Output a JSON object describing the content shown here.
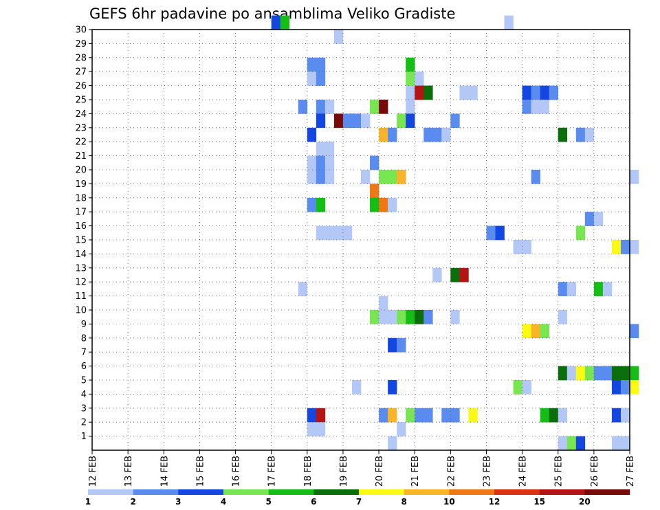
{
  "chart_data": {
    "type": "heatmap",
    "title": "GEFS 6hr padavine po ansamblima Veliko Gradiste",
    "xlabel": "",
    "ylabel": "",
    "x_tick_labels": [
      "12 FEB",
      "13 FEB",
      "14 FEB",
      "15 FEB",
      "16 FEB",
      "17 FEB",
      "18 FEB",
      "19 FEB",
      "20 FEB",
      "21 FEB",
      "22 FEB",
      "23 FEB",
      "24 FEB",
      "25 FEB",
      "26 FEB",
      "27 FEB"
    ],
    "y_tick_labels": [
      "1",
      "2",
      "3",
      "4",
      "5",
      "6",
      "7",
      "8",
      "9",
      "10",
      "11",
      "12",
      "13",
      "14",
      "15",
      "16",
      "17",
      "18",
      "19",
      "20",
      "21",
      "22",
      "23",
      "24",
      "25",
      "26",
      "27",
      "28",
      "29",
      "30"
    ],
    "ylim": [
      0,
      30
    ],
    "grid": true,
    "colorbar": {
      "labels": [
        "1",
        "2",
        "3",
        "4",
        "5",
        "6",
        "7",
        "8",
        "10",
        "12",
        "15",
        "20"
      ],
      "colors": [
        "#b4c8f8",
        "#5a8cf0",
        "#1446e0",
        "#78e650",
        "#14be14",
        "#0a6e0a",
        "#fafa14",
        "#fab428",
        "#f07814",
        "#dc3214",
        "#b41414",
        "#780a0a"
      ]
    },
    "cells": [
      {
        "m": 30,
        "d": "17 FEB",
        "s": 0,
        "v": 3
      },
      {
        "m": 30,
        "d": "17 FEB",
        "s": 1,
        "v": 5
      },
      {
        "m": 30,
        "d": "23 FEB",
        "s": 2,
        "v": 1
      },
      {
        "m": 29,
        "d": "18 FEB",
        "s": 3,
        "v": 1
      },
      {
        "m": 27,
        "d": "18 FEB",
        "s": 0,
        "v": 2
      },
      {
        "m": 27,
        "d": "18 FEB",
        "s": 1,
        "v": 2
      },
      {
        "m": 27,
        "d": "20 FEB",
        "s": 3,
        "v": 5
      },
      {
        "m": 26,
        "d": "18 FEB",
        "s": 0,
        "v": 1
      },
      {
        "m": 26,
        "d": "18 FEB",
        "s": 1,
        "v": 2
      },
      {
        "m": 26,
        "d": "20 FEB",
        "s": 3,
        "v": 4
      },
      {
        "m": 26,
        "d": "21 FEB",
        "s": 0,
        "v": 1
      },
      {
        "m": 25,
        "d": "20 FEB",
        "s": 3,
        "v": 1
      },
      {
        "m": 25,
        "d": "21 FEB",
        "s": 0,
        "v": 15
      },
      {
        "m": 25,
        "d": "21 FEB",
        "s": 1,
        "v": 6
      },
      {
        "m": 25,
        "d": "22 FEB",
        "s": 1,
        "v": 1
      },
      {
        "m": 25,
        "d": "22 FEB",
        "s": 2,
        "v": 1
      },
      {
        "m": 25,
        "d": "24 FEB",
        "s": 0,
        "v": 3
      },
      {
        "m": 25,
        "d": "24 FEB",
        "s": 1,
        "v": 2
      },
      {
        "m": 25,
        "d": "24 FEB",
        "s": 2,
        "v": 3
      },
      {
        "m": 25,
        "d": "24 FEB",
        "s": 3,
        "v": 2
      },
      {
        "m": 24,
        "d": "17 FEB",
        "s": 3,
        "v": 2
      },
      {
        "m": 24,
        "d": "18 FEB",
        "s": 1,
        "v": 2
      },
      {
        "m": 24,
        "d": "18 FEB",
        "s": 2,
        "v": 1
      },
      {
        "m": 24,
        "d": "19 FEB",
        "s": 3,
        "v": 4
      },
      {
        "m": 24,
        "d": "20 FEB",
        "s": 0,
        "v": 20
      },
      {
        "m": 24,
        "d": "20 FEB",
        "s": 3,
        "v": 1
      },
      {
        "m": 24,
        "d": "24 FEB",
        "s": 0,
        "v": 2
      },
      {
        "m": 24,
        "d": "24 FEB",
        "s": 1,
        "v": 1
      },
      {
        "m": 24,
        "d": "24 FEB",
        "s": 2,
        "v": 1
      },
      {
        "m": 23,
        "d": "18 FEB",
        "s": 1,
        "v": 3
      },
      {
        "m": 23,
        "d": "18 FEB",
        "s": 3,
        "v": 20
      },
      {
        "m": 23,
        "d": "19 FEB",
        "s": 0,
        "v": 2
      },
      {
        "m": 23,
        "d": "19 FEB",
        "s": 1,
        "v": 2
      },
      {
        "m": 23,
        "d": "19 FEB",
        "s": 2,
        "v": 1
      },
      {
        "m": 23,
        "d": "20 FEB",
        "s": 2,
        "v": 4
      },
      {
        "m": 23,
        "d": "20 FEB",
        "s": 3,
        "v": 3
      },
      {
        "m": 23,
        "d": "22 FEB",
        "s": 0,
        "v": 2
      },
      {
        "m": 22,
        "d": "18 FEB",
        "s": 0,
        "v": 3
      },
      {
        "m": 22,
        "d": "20 FEB",
        "s": 0,
        "v": 8
      },
      {
        "m": 22,
        "d": "20 FEB",
        "s": 1,
        "v": 2
      },
      {
        "m": 22,
        "d": "21 FEB",
        "s": 1,
        "v": 2
      },
      {
        "m": 22,
        "d": "21 FEB",
        "s": 2,
        "v": 2
      },
      {
        "m": 22,
        "d": "21 FEB",
        "s": 3,
        "v": 1
      },
      {
        "m": 22,
        "d": "25 FEB",
        "s": 0,
        "v": 6
      },
      {
        "m": 22,
        "d": "25 FEB",
        "s": 2,
        "v": 2
      },
      {
        "m": 22,
        "d": "25 FEB",
        "s": 3,
        "v": 1
      },
      {
        "m": 21,
        "d": "18 FEB",
        "s": 1,
        "v": 1
      },
      {
        "m": 21,
        "d": "18 FEB",
        "s": 2,
        "v": 1
      },
      {
        "m": 20,
        "d": "18 FEB",
        "s": 0,
        "v": 1
      },
      {
        "m": 20,
        "d": "18 FEB",
        "s": 1,
        "v": 2
      },
      {
        "m": 20,
        "d": "18 FEB",
        "s": 2,
        "v": 1
      },
      {
        "m": 20,
        "d": "19 FEB",
        "s": 3,
        "v": 2
      },
      {
        "m": 19,
        "d": "18 FEB",
        "s": 0,
        "v": 1
      },
      {
        "m": 19,
        "d": "18 FEB",
        "s": 1,
        "v": 2
      },
      {
        "m": 19,
        "d": "18 FEB",
        "s": 2,
        "v": 1
      },
      {
        "m": 19,
        "d": "19 FEB",
        "s": 2,
        "v": 1
      },
      {
        "m": 19,
        "d": "20 FEB",
        "s": 0,
        "v": 4
      },
      {
        "m": 19,
        "d": "20 FEB",
        "s": 1,
        "v": 4
      },
      {
        "m": 19,
        "d": "20 FEB",
        "s": 2,
        "v": 8
      },
      {
        "m": 19,
        "d": "24 FEB",
        "s": 1,
        "v": 2
      },
      {
        "m": 19,
        "d": "27 FEB",
        "s": 0,
        "v": 1
      },
      {
        "m": 18,
        "d": "19 FEB",
        "s": 3,
        "v": 10
      },
      {
        "m": 17,
        "d": "18 FEB",
        "s": 0,
        "v": 2
      },
      {
        "m": 17,
        "d": "18 FEB",
        "s": 1,
        "v": 5
      },
      {
        "m": 17,
        "d": "19 FEB",
        "s": 3,
        "v": 5
      },
      {
        "m": 17,
        "d": "20 FEB",
        "s": 0,
        "v": 10
      },
      {
        "m": 17,
        "d": "20 FEB",
        "s": 1,
        "v": 1
      },
      {
        "m": 16,
        "d": "25 FEB",
        "s": 3,
        "v": 2
      },
      {
        "m": 16,
        "d": "26 FEB",
        "s": 0,
        "v": 1
      },
      {
        "m": 15,
        "d": "18 FEB",
        "s": 1,
        "v": 1
      },
      {
        "m": 15,
        "d": "18 FEB",
        "s": 2,
        "v": 1
      },
      {
        "m": 15,
        "d": "18 FEB",
        "s": 3,
        "v": 1
      },
      {
        "m": 15,
        "d": "19 FEB",
        "s": 0,
        "v": 1
      },
      {
        "m": 15,
        "d": "23 FEB",
        "s": 0,
        "v": 2
      },
      {
        "m": 15,
        "d": "23 FEB",
        "s": 1,
        "v": 3
      },
      {
        "m": 15,
        "d": "25 FEB",
        "s": 2,
        "v": 4
      },
      {
        "m": 14,
        "d": "23 FEB",
        "s": 3,
        "v": 1
      },
      {
        "m": 14,
        "d": "24 FEB",
        "s": 0,
        "v": 1
      },
      {
        "m": 14,
        "d": "26 FEB",
        "s": 2,
        "v": 7
      },
      {
        "m": 14,
        "d": "26 FEB",
        "s": 3,
        "v": 2
      },
      {
        "m": 14,
        "d": "27 FEB",
        "s": 0,
        "v": 1
      },
      {
        "m": 12,
        "d": "21 FEB",
        "s": 2,
        "v": 1
      },
      {
        "m": 12,
        "d": "22 FEB",
        "s": 0,
        "v": 6
      },
      {
        "m": 12,
        "d": "22 FEB",
        "s": 1,
        "v": 15
      },
      {
        "m": 11,
        "d": "17 FEB",
        "s": 3,
        "v": 1
      },
      {
        "m": 11,
        "d": "25 FEB",
        "s": 0,
        "v": 2
      },
      {
        "m": 11,
        "d": "25 FEB",
        "s": 1,
        "v": 1
      },
      {
        "m": 11,
        "d": "26 FEB",
        "s": 0,
        "v": 5
      },
      {
        "m": 11,
        "d": "26 FEB",
        "s": 1,
        "v": 1
      },
      {
        "m": 10,
        "d": "20 FEB",
        "s": 0,
        "v": 1
      },
      {
        "m": 9,
        "d": "19 FEB",
        "s": 3,
        "v": 4
      },
      {
        "m": 9,
        "d": "20 FEB",
        "s": 0,
        "v": 1
      },
      {
        "m": 9,
        "d": "20 FEB",
        "s": 1,
        "v": 1
      },
      {
        "m": 9,
        "d": "20 FEB",
        "s": 2,
        "v": 4
      },
      {
        "m": 9,
        "d": "20 FEB",
        "s": 3,
        "v": 5
      },
      {
        "m": 9,
        "d": "21 FEB",
        "s": 0,
        "v": 6
      },
      {
        "m": 9,
        "d": "21 FEB",
        "s": 1,
        "v": 2
      },
      {
        "m": 9,
        "d": "22 FEB",
        "s": 0,
        "v": 1
      },
      {
        "m": 9,
        "d": "25 FEB",
        "s": 0,
        "v": 1
      },
      {
        "m": 8,
        "d": "24 FEB",
        "s": 0,
        "v": 7
      },
      {
        "m": 8,
        "d": "24 FEB",
        "s": 1,
        "v": 8
      },
      {
        "m": 8,
        "d": "24 FEB",
        "s": 2,
        "v": 4
      },
      {
        "m": 8,
        "d": "27 FEB",
        "s": 0,
        "v": 2
      },
      {
        "m": 7,
        "d": "20 FEB",
        "s": 1,
        "v": 3
      },
      {
        "m": 7,
        "d": "20 FEB",
        "s": 2,
        "v": 2
      },
      {
        "m": 5,
        "d": "25 FEB",
        "s": 0,
        "v": 6
      },
      {
        "m": 5,
        "d": "25 FEB",
        "s": 1,
        "v": 1
      },
      {
        "m": 5,
        "d": "25 FEB",
        "s": 2,
        "v": 7
      },
      {
        "m": 5,
        "d": "25 FEB",
        "s": 3,
        "v": 4
      },
      {
        "m": 5,
        "d": "26 FEB",
        "s": 0,
        "v": 2
      },
      {
        "m": 5,
        "d": "26 FEB",
        "s": 1,
        "v": 2
      },
      {
        "m": 5,
        "d": "26 FEB",
        "s": 2,
        "v": 6
      },
      {
        "m": 5,
        "d": "26 FEB",
        "s": 3,
        "v": 6
      },
      {
        "m": 5,
        "d": "27 FEB",
        "s": 0,
        "v": 5
      },
      {
        "m": 4,
        "d": "19 FEB",
        "s": 1,
        "v": 1
      },
      {
        "m": 4,
        "d": "20 FEB",
        "s": 1,
        "v": 3
      },
      {
        "m": 4,
        "d": "23 FEB",
        "s": 3,
        "v": 4
      },
      {
        "m": 4,
        "d": "24 FEB",
        "s": 0,
        "v": 1
      },
      {
        "m": 4,
        "d": "26 FEB",
        "s": 2,
        "v": 3
      },
      {
        "m": 4,
        "d": "26 FEB",
        "s": 3,
        "v": 2
      },
      {
        "m": 4,
        "d": "27 FEB",
        "s": 0,
        "v": 7
      },
      {
        "m": 2,
        "d": "18 FEB",
        "s": 0,
        "v": 3
      },
      {
        "m": 2,
        "d": "18 FEB",
        "s": 1,
        "v": 15
      },
      {
        "m": 2,
        "d": "20 FEB",
        "s": 0,
        "v": 2
      },
      {
        "m": 2,
        "d": "20 FEB",
        "s": 1,
        "v": 8
      },
      {
        "m": 2,
        "d": "20 FEB",
        "s": 3,
        "v": 4
      },
      {
        "m": 2,
        "d": "21 FEB",
        "s": 0,
        "v": 2
      },
      {
        "m": 2,
        "d": "21 FEB",
        "s": 1,
        "v": 2
      },
      {
        "m": 2,
        "d": "21 FEB",
        "s": 3,
        "v": 2
      },
      {
        "m": 2,
        "d": "22 FEB",
        "s": 0,
        "v": 2
      },
      {
        "m": 2,
        "d": "22 FEB",
        "s": 2,
        "v": 7
      },
      {
        "m": 2,
        "d": "24 FEB",
        "s": 2,
        "v": 5
      },
      {
        "m": 2,
        "d": "24 FEB",
        "s": 3,
        "v": 6
      },
      {
        "m": 2,
        "d": "25 FEB",
        "s": 0,
        "v": 1
      },
      {
        "m": 2,
        "d": "26 FEB",
        "s": 2,
        "v": 3
      },
      {
        "m": 2,
        "d": "26 FEB",
        "s": 3,
        "v": 1
      },
      {
        "m": 1,
        "d": "18 FEB",
        "s": 0,
        "v": 1
      },
      {
        "m": 1,
        "d": "18 FEB",
        "s": 1,
        "v": 1
      },
      {
        "m": 1,
        "d": "20 FEB",
        "s": 2,
        "v": 1
      },
      {
        "m": 0,
        "d": "20 FEB",
        "s": 1,
        "v": 1
      },
      {
        "m": 0,
        "d": "25 FEB",
        "s": 0,
        "v": 1
      },
      {
        "m": 0,
        "d": "25 FEB",
        "s": 1,
        "v": 4
      },
      {
        "m": 0,
        "d": "25 FEB",
        "s": 2,
        "v": 3
      },
      {
        "m": 0,
        "d": "26 FEB",
        "s": 2,
        "v": 1
      },
      {
        "m": 0,
        "d": "26 FEB",
        "s": 3,
        "v": 1
      }
    ]
  }
}
